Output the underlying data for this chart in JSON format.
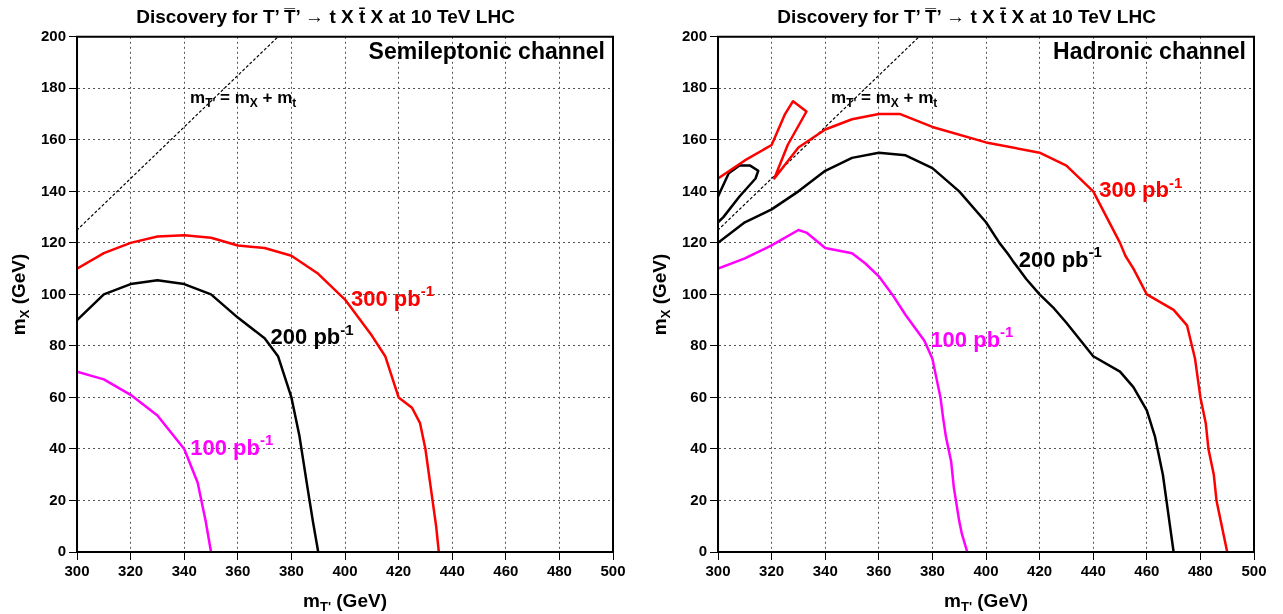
{
  "chart_data": [
    {
      "type": "line",
      "title": "Discovery for T’ T̅’ → t X t̄ X at 10 TeV LHC",
      "subtitle": "Semileptonic channel",
      "xlabel": "m$_{T'}$ (GeV)",
      "ylabel": "m$_{X}$ (GeV)",
      "xlim": [
        300,
        500
      ],
      "xticks": [
        300,
        320,
        340,
        360,
        380,
        400,
        420,
        440,
        460,
        480,
        500
      ],
      "ylim": [
        0,
        200
      ],
      "yticks": [
        0,
        20,
        40,
        60,
        80,
        100,
        120,
        140,
        160,
        180,
        200
      ],
      "grid": true,
      "legend": false,
      "annotations": [
        "m$_{T'}$ = m$_{X}$ + m$_{t}$"
      ],
      "series": [
        {
          "name": "300 pb$^{-1}$",
          "color": "#ff0000",
          "x": [
            300,
            310,
            320,
            330,
            340,
            350,
            360,
            370,
            380,
            390,
            400,
            410,
            415,
            420,
            425,
            428,
            430,
            432,
            434,
            435
          ],
          "values": [
            110,
            116,
            120,
            122.5,
            123,
            122,
            119,
            118,
            115,
            108,
            98,
            84,
            76,
            60,
            56,
            50,
            40,
            25,
            10,
            0
          ]
        },
        {
          "name": "200 pb$^{-1}$",
          "color": "#000000",
          "x": [
            300,
            310,
            320,
            330,
            340,
            350,
            360,
            370,
            375,
            380,
            383,
            386,
            388,
            390
          ],
          "values": [
            90,
            100,
            104,
            105.5,
            104,
            100,
            91,
            83,
            76,
            60,
            45,
            25,
            12,
            0
          ]
        },
        {
          "name": "100 pb$^{-1}$",
          "color": "#ff00ff",
          "x": [
            300,
            310,
            320,
            330,
            340,
            345,
            348,
            350
          ],
          "values": [
            70,
            67,
            61,
            53,
            40,
            27,
            12,
            0
          ]
        },
        {
          "color": "#000000",
          "line_style": "dotted",
          "x": [
            300,
            375
          ],
          "values": [
            125,
            200
          ]
        }
      ]
    },
    {
      "type": "line",
      "title": "Discovery for T’ T̅’ → t X t̄ X at 10 TeV LHC",
      "subtitle": "Hadronic channel",
      "xlabel": "m$_{T'}$ (GeV)",
      "ylabel": "m$_{X}$ (GeV)",
      "xlim": [
        300,
        500
      ],
      "xticks": [
        300,
        320,
        340,
        360,
        380,
        400,
        420,
        440,
        460,
        480,
        500
      ],
      "ylim": [
        0,
        200
      ],
      "yticks": [
        0,
        20,
        40,
        60,
        80,
        100,
        120,
        140,
        160,
        180,
        200
      ],
      "grid": true,
      "legend": false,
      "annotations": [
        "m$_{T'}$ = m$_{X}$ + m$_{t}$"
      ],
      "series": [
        {
          "name": "300 pb$^{-1}$",
          "color": "#ff0000",
          "x": [
            300,
            310,
            320,
            325,
            328,
            333,
            326,
            321,
            330,
            340,
            350,
            360,
            368,
            380,
            400,
            420,
            430,
            440,
            445,
            450,
            452,
            455,
            460,
            465,
            470,
            475,
            478,
            480,
            482,
            483,
            485,
            486,
            488,
            490
          ],
          "values": [
            145,
            152,
            158,
            170,
            175,
            171,
            158,
            145,
            157,
            164,
            168,
            170,
            170,
            165,
            159,
            155,
            150,
            140,
            130,
            120,
            115,
            110,
            100,
            97,
            94,
            88,
            75,
            60,
            50,
            40,
            30,
            20,
            10,
            0
          ]
        },
        {
          "color": "#000000",
          "x": [
            300,
            304,
            308,
            312,
            315,
            314,
            308,
            302,
            300
          ],
          "values": [
            138,
            147,
            150,
            150,
            148,
            145,
            138,
            130,
            128
          ]
        },
        {
          "name": "200 pb$^{-1}$",
          "color": "#000000",
          "x": [
            300,
            310,
            320,
            330,
            340,
            350,
            360,
            370,
            380,
            390,
            400,
            405,
            408,
            410,
            415,
            420,
            425,
            430,
            440,
            450,
            455,
            460,
            463,
            466,
            468,
            470
          ],
          "values": [
            120,
            128,
            133,
            140,
            148,
            153,
            155,
            154,
            149,
            140,
            128,
            120,
            116,
            113,
            106,
            100,
            95,
            89,
            76,
            70,
            64,
            55,
            45,
            30,
            15,
            0
          ]
        },
        {
          "name": "100 pb$^{-1}$",
          "color": "#ff00ff",
          "x": [
            300,
            310,
            320,
            330,
            333,
            340,
            350,
            355,
            360,
            365,
            370,
            377,
            380,
            381,
            383,
            384,
            385,
            386,
            387,
            388,
            390,
            391,
            393
          ],
          "values": [
            110,
            114,
            119,
            125,
            124,
            118,
            116,
            112,
            107,
            100,
            92,
            82,
            75,
            70,
            60,
            52,
            45,
            40,
            35,
            25,
            12,
            7,
            0
          ]
        },
        {
          "color": "#000000",
          "line_style": "dotted",
          "x": [
            300,
            375
          ],
          "values": [
            125,
            200
          ]
        }
      ]
    }
  ]
}
